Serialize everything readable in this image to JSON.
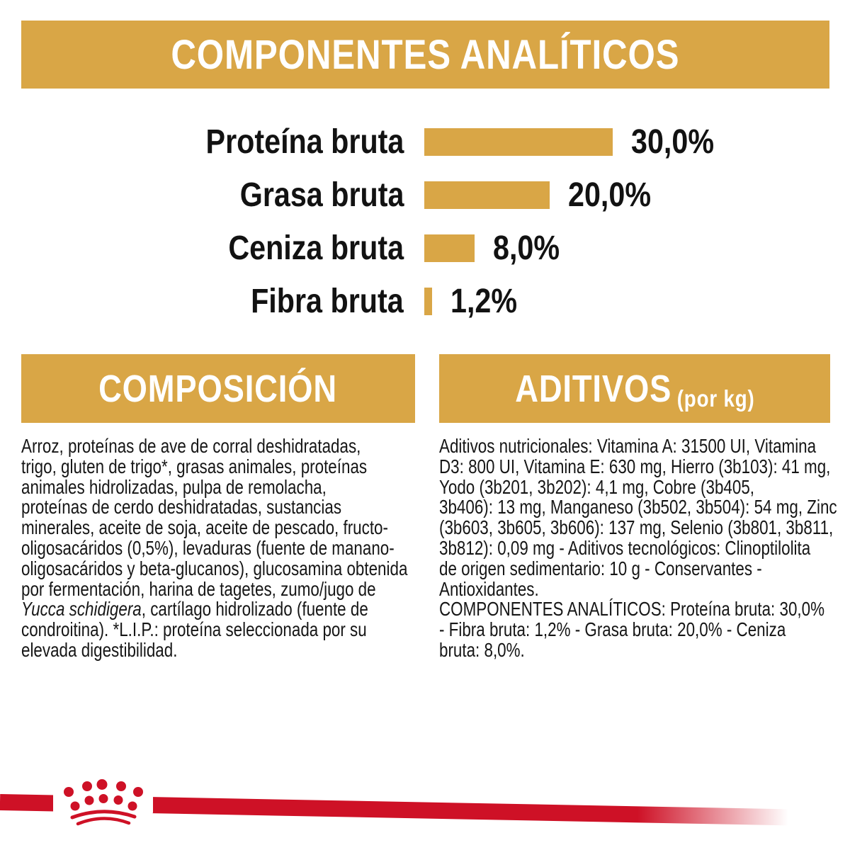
{
  "colors": {
    "gold": "#D9A646",
    "red": "#CE1126",
    "ink": "#151515",
    "background": "#FFFFFF",
    "banner_text": "#FFFFFF"
  },
  "header": {
    "title": "COMPONENTES ANALÍTICOS"
  },
  "chart_data": {
    "type": "bar",
    "orientation": "horizontal",
    "title": "COMPONENTES ANALÍTICOS",
    "categories": [
      "Proteína bruta",
      "Grasa bruta",
      "Ceniza bruta",
      "Fibra bruta"
    ],
    "values": [
      30.0,
      20.0,
      8.0,
      1.2
    ],
    "value_labels": [
      "30,0%",
      "20,0%",
      "8,0%",
      "1,2%"
    ],
    "unit": "%",
    "xlim": [
      0,
      30
    ],
    "bar_color": "#D9A646",
    "grid": false,
    "legend": false
  },
  "sections": {
    "composicion": {
      "title": "COMPOSICIÓN",
      "lines": [
        "Arroz, proteínas de ave de corral deshidratadas,",
        "trigo, gluten de trigo*, grasas animales, proteínas",
        "animales hidrolizadas, pulpa de remolacha,",
        "proteínas de cerdo deshidratadas, sustancias",
        "minerales, aceite de soja, aceite de pescado, fructo-",
        "oligosacáridos (0,5%), levaduras (fuente de manano-",
        "oligosacáridos y beta-glucanos), glucosamina obtenida",
        "por fermentación, harina de tagetes, zumo/jugo de",
        [
          {
            "t": "Yucca schidigera",
            "i": true
          },
          {
            "t": ", cartílago hidrolizado (fuente de"
          }
        ],
        "condroitina). *L.I.P.: proteína seleccionada por su",
        "elevada digestibilidad."
      ]
    },
    "aditivos": {
      "title": "ADITIVOS",
      "title_suffix": "(por kg)",
      "lines": [
        "Aditivos nutricionales: Vitamina A: 31500 UI, Vitamina",
        "D3: 800 UI, Vitamina E: 630 mg, Hierro (3b103): 41 mg,",
        "Yodo (3b201, 3b202): 4,1 mg, Cobre (3b405,",
        "3b406): 13 mg, Manganeso (3b502, 3b504): 54 mg, Zinc",
        "(3b603, 3b605, 3b606): 137 mg, Selenio (3b801, 3b811,",
        "3b812): 0,09 mg - Aditivos tecnológicos: Clinoptilolita",
        "de origen sedimentario: 10 g - Conservantes -",
        "Antioxidantes.",
        "COMPONENTES ANALÍTICOS: Proteína bruta: 30,0%",
        "- Fibra bruta: 1,2% - Grasa bruta: 20,0% - Ceniza",
        "bruta: 8,0%."
      ]
    }
  },
  "footer": {
    "brand_mark": "royal-canin-crown"
  }
}
